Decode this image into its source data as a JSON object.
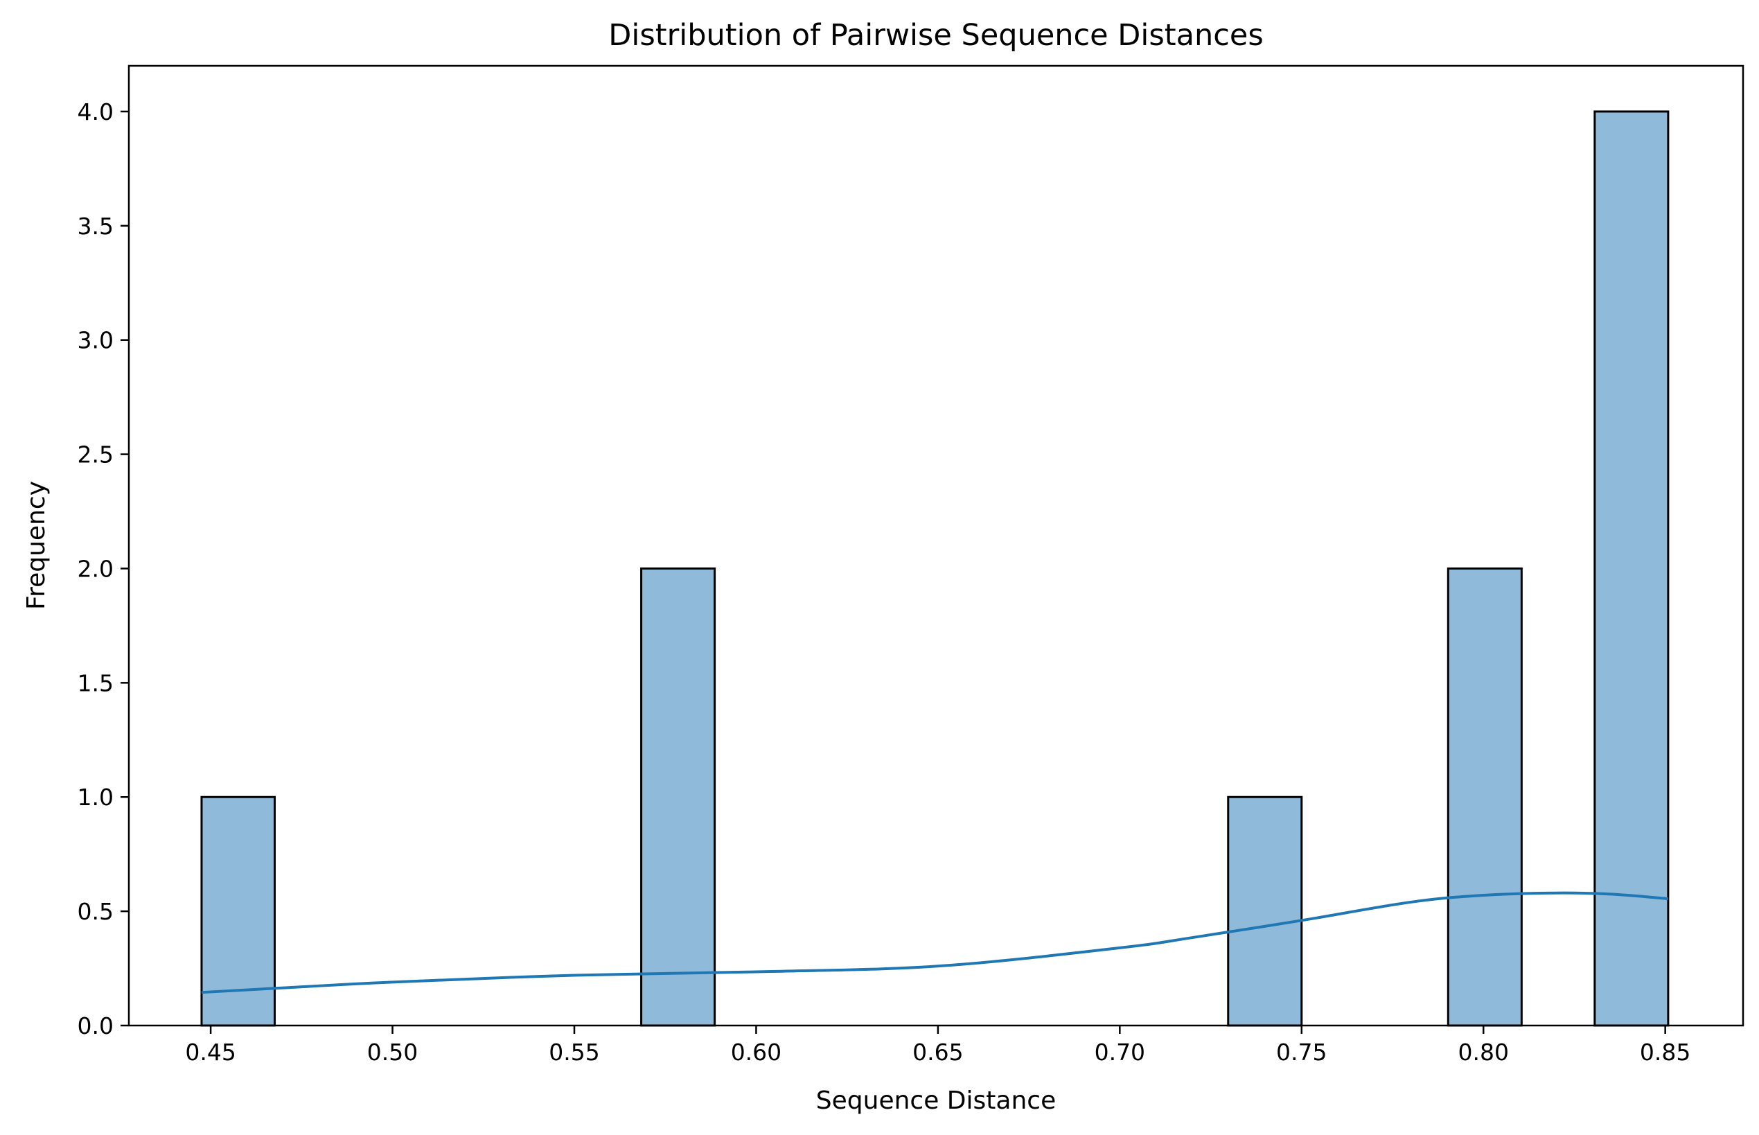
{
  "chart_data": {
    "type": "bar",
    "title": "Distribution of Pairwise Sequence Distances",
    "xlabel": "Sequence Distance",
    "ylabel": "Frequency",
    "xlim": [
      0.4275,
      0.8714
    ],
    "ylim": [
      0,
      4.2
    ],
    "xticks": [
      "0.45",
      "0.50",
      "0.55",
      "0.60",
      "0.65",
      "0.70",
      "0.75",
      "0.80",
      "0.85"
    ],
    "yticks": [
      "0.0",
      "0.5",
      "1.0",
      "1.5",
      "2.0",
      "2.5",
      "3.0",
      "3.5",
      "4.0"
    ],
    "grid": false,
    "bins": [
      {
        "x0": 0.4475,
        "x1": 0.4676,
        "count": 1
      },
      {
        "x0": 0.5684,
        "x1": 0.5886,
        "count": 2
      },
      {
        "x0": 0.7298,
        "x1": 0.75,
        "count": 1
      },
      {
        "x0": 0.7903,
        "x1": 0.8105,
        "count": 2
      },
      {
        "x0": 0.8306,
        "x1": 0.8508,
        "count": 4
      }
    ],
    "kde": {
      "x": [
        0.4475,
        0.47,
        0.5,
        0.55,
        0.6,
        0.65,
        0.7,
        0.72,
        0.75,
        0.78,
        0.8,
        0.82,
        0.835,
        0.8508
      ],
      "y": [
        0.145,
        0.165,
        0.19,
        0.22,
        0.235,
        0.26,
        0.34,
        0.385,
        0.46,
        0.54,
        0.57,
        0.58,
        0.575,
        0.555
      ]
    },
    "colors": {
      "bar_fill": "#8fbad9",
      "bar_edge": "#000000",
      "kde_line": "#1f77b4"
    }
  }
}
